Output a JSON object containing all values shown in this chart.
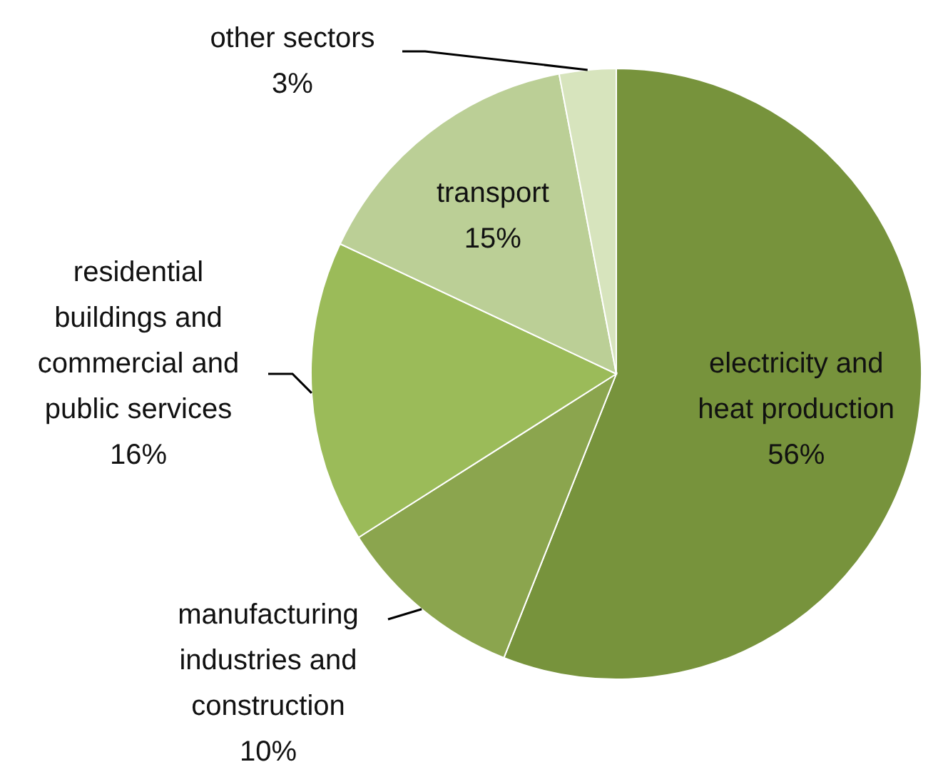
{
  "chart_data": {
    "type": "pie",
    "categories": [
      "electricity and heat production",
      "manufacturing industries and construction",
      "residential buildings and commercial and public services",
      "transport",
      "other sectors"
    ],
    "values": [
      56,
      10,
      16,
      15,
      3
    ],
    "value_labels": [
      "56%",
      "10%",
      "16%",
      "15%",
      "3%"
    ],
    "colors": [
      "#77933c",
      "#8ba54e",
      "#9bbb59",
      "#bbcf96",
      "#d7e4bd"
    ]
  }
}
